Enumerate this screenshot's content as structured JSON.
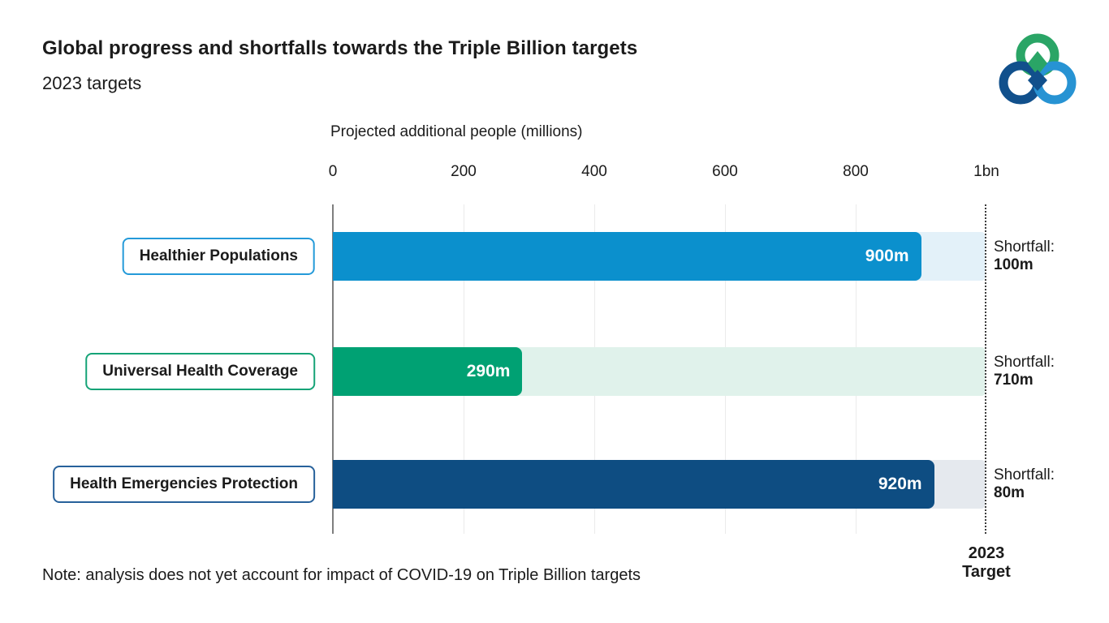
{
  "header": {
    "title": "Global progress and shortfalls towards the Triple Billion targets",
    "subtitle": "2023 targets"
  },
  "logo": {
    "name": "triple-billion-logo",
    "green": "#2aa566",
    "dark_blue": "#11508c",
    "light_blue": "#2793d3"
  },
  "chart_data": {
    "type": "bar",
    "orientation": "horizontal",
    "title": "Global progress and shortfalls towards the Triple Billion targets",
    "subtitle": "2023 targets",
    "xlabel": "Projected additional people (millions)",
    "xlim": [
      0,
      1000
    ],
    "tick_values": [
      0,
      200,
      400,
      600,
      800,
      1000
    ],
    "tick_labels": [
      "0",
      "200",
      "400",
      "600",
      "800",
      "1bn"
    ],
    "grid": "vertical-light",
    "target": {
      "value": 1000,
      "label_line1": "2023",
      "label_line2": "Target"
    },
    "categories": [
      "Healthier Populations",
      "Universal Health Coverage",
      "Health Emergencies Protection"
    ],
    "values": [
      900,
      290,
      920
    ],
    "shortfalls": [
      100,
      710,
      80
    ],
    "rows": [
      {
        "category": "Healthier Populations",
        "value": 900,
        "value_label": "900m",
        "shortfall_label": "Shortfall:",
        "shortfall_value": "100m",
        "bar_color": "#0b90cd",
        "remainder_color": "#e3f1f9",
        "box_border_color": "#249ad9"
      },
      {
        "category": "Universal Health Coverage",
        "value": 290,
        "value_label": "290m",
        "shortfall_label": "Shortfall:",
        "shortfall_value": "710m",
        "bar_color": "#00a173",
        "remainder_color": "#e0f2eb",
        "box_border_color": "#15a377"
      },
      {
        "category": "Health Emergencies Protection",
        "value": 920,
        "value_label": "920m",
        "shortfall_label": "Shortfall:",
        "shortfall_value": "80m",
        "bar_color": "#0e4d82",
        "remainder_color": "#e5e9ee",
        "box_border_color": "#27619b"
      }
    ]
  },
  "note": "Note: analysis does not yet account for impact of COVID-19 on Triple Billion targets"
}
